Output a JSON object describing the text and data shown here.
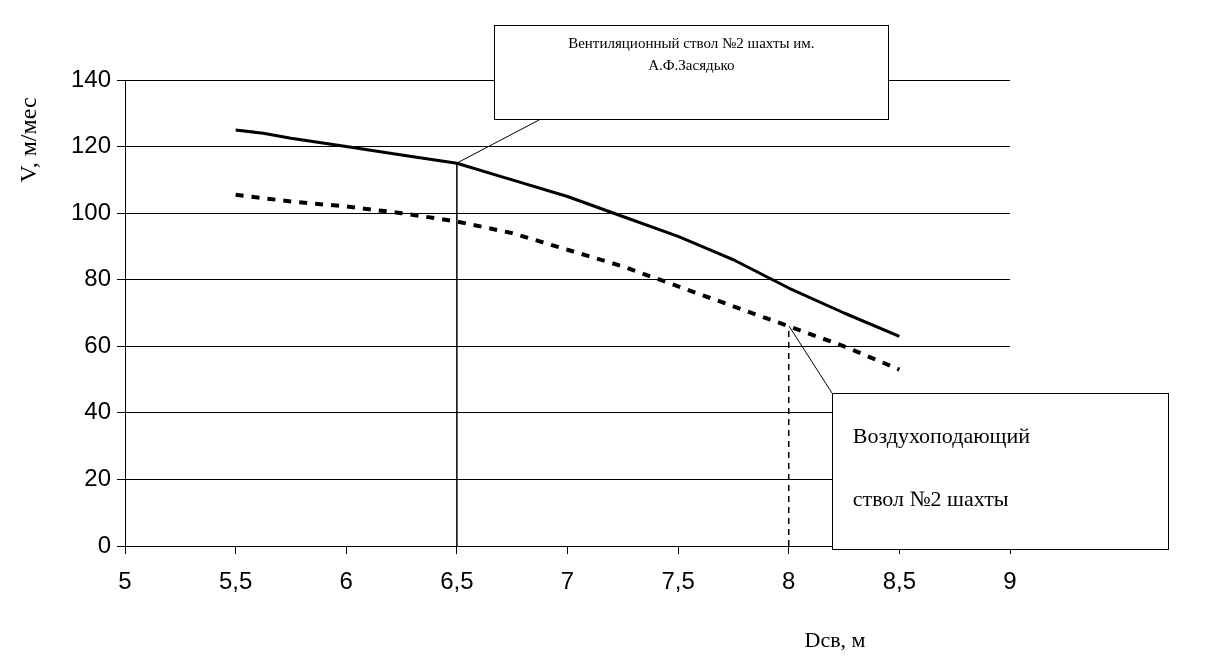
{
  "chart_data": {
    "type": "line",
    "xlabel": "Dсв, м",
    "ylabel": "V, м/мес",
    "x": [
      5.5,
      5.625,
      5.75,
      6,
      6.25,
      6.5,
      6.75,
      7,
      7.25,
      7.5,
      7.75,
      8,
      8.25,
      8.5
    ],
    "series": [
      {
        "color": "#000000",
        "line_style": "solid",
        "values": [
          125,
          124,
          122.5,
          120,
          117.5,
          115,
          110,
          105,
          99,
          93,
          86,
          77.5,
          70,
          63
        ]
      },
      {
        "color": "#000000",
        "line_style": "dotted",
        "values": [
          105.5,
          104.5,
          103.5,
          102,
          100,
          97.5,
          94,
          89,
          84,
          78,
          72,
          66,
          60,
          53
        ]
      }
    ],
    "ref_lines": [
      {
        "axis": "x",
        "value": 6.5,
        "color": "#000000",
        "line_style": "solid"
      },
      {
        "axis": "x",
        "value": 8,
        "color": "#000000",
        "line_style": "dashed"
      }
    ],
    "xlim": [
      5,
      9
    ],
    "xticks": [
      5,
      {
        "value": 5.5,
        "label": "5,5"
      },
      6,
      {
        "value": 6.5,
        "label": "6,5"
      },
      7,
      {
        "value": 7.5,
        "label": "7,5"
      },
      8,
      {
        "value": 8.5,
        "label": "8,5"
      },
      9
    ],
    "ylim": [
      0,
      140
    ],
    "yticks": [
      0,
      20,
      40,
      60,
      80,
      100,
      120,
      140
    ],
    "grid": "y",
    "legend": false,
    "marker": "none",
    "annotations": [
      "Вентиляционный ствол №2 шахты им. А.Ф.Засядько",
      "Воздухоподающий ствол №2 шахты"
    ]
  }
}
